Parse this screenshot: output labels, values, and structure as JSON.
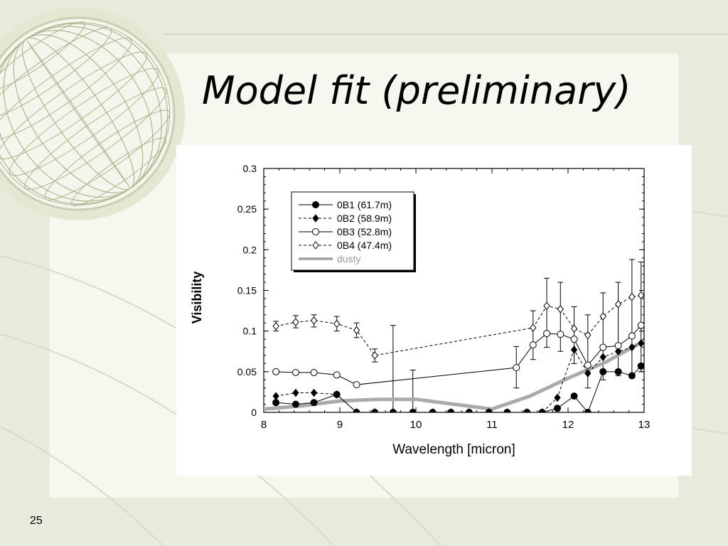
{
  "slide": {
    "title": "Model fit (preliminary)",
    "number": "25"
  },
  "chart_data": {
    "type": "line",
    "xlabel": "Wavelength [micron]",
    "ylabel": "Visibility",
    "xlim": [
      8,
      13
    ],
    "ylim": [
      0,
      0.3
    ],
    "xticks": [
      "8",
      "9",
      "10",
      "11",
      "12",
      "13"
    ],
    "yticks": [
      "0",
      "0.05",
      "0.1",
      "0.15",
      "0.2",
      "0.25",
      "0.3"
    ],
    "legend_position": "top-left",
    "series": [
      {
        "name": "0B1 (61.7m)",
        "style": "solid",
        "marker": "filled-circle",
        "color": "#000000",
        "x": [
          8.16,
          8.42,
          8.66,
          8.96,
          9.22,
          9.46,
          9.7,
          9.96,
          10.22,
          10.46,
          10.7,
          10.96,
          11.2,
          11.46,
          11.66,
          11.86,
          12.08,
          12.26,
          12.46,
          12.66,
          12.84,
          12.96
        ],
        "y": [
          0.012,
          0.01,
          0.012,
          0.022,
          0.0,
          0.0,
          0.0,
          0.0,
          0.0,
          0.0,
          0.0,
          0.0,
          0.0,
          0.0,
          0.0,
          0.005,
          0.02,
          0.0,
          0.05,
          0.05,
          0.045,
          0.057
        ]
      },
      {
        "name": "0B2 (58.9m)",
        "style": "dashed",
        "marker": "filled-diamond",
        "color": "#000000",
        "x": [
          8.16,
          8.42,
          8.66,
          8.96,
          9.22,
          9.46,
          9.7,
          9.96,
          10.22,
          10.46,
          10.7,
          10.96,
          11.2,
          11.46,
          11.66,
          11.86,
          12.08,
          12.26,
          12.46,
          12.66,
          12.84,
          12.96
        ],
        "y": [
          0.02,
          0.024,
          0.024,
          0.022,
          0.0,
          0.0,
          0.0,
          0.0,
          0.0,
          0.0,
          0.0,
          0.0,
          0.0,
          0.0,
          0.0,
          0.018,
          0.077,
          0.048,
          0.068,
          0.075,
          0.08,
          0.085
        ]
      },
      {
        "name": "0B3 (52.8m)",
        "style": "solid",
        "marker": "open-circle",
        "color": "#000000",
        "x": [
          8.16,
          8.42,
          8.66,
          8.96,
          9.22,
          11.32,
          11.54,
          11.72,
          11.9,
          12.08,
          12.26,
          12.46,
          12.66,
          12.84,
          12.96
        ],
        "y": [
          0.05,
          0.049,
          0.049,
          0.046,
          0.034,
          0.055,
          0.083,
          0.097,
          0.096,
          0.09,
          0.058,
          0.08,
          0.082,
          0.094,
          0.107
        ]
      },
      {
        "name": "0B4 (47.4m)",
        "style": "dashed",
        "marker": "open-diamond",
        "color": "#000000",
        "x": [
          8.16,
          8.42,
          8.66,
          8.96,
          9.22,
          9.46,
          11.54,
          11.72,
          11.9,
          12.08,
          12.26,
          12.46,
          12.66,
          12.84,
          12.96
        ],
        "y": [
          0.106,
          0.111,
          0.113,
          0.109,
          0.101,
          0.07,
          0.104,
          0.131,
          0.127,
          0.103,
          0.095,
          0.118,
          0.133,
          0.142,
          0.144
        ]
      },
      {
        "name": "dusty",
        "style": "thick",
        "marker": "none",
        "color": "#aaaaaa",
        "x": [
          8.0,
          8.5,
          9.0,
          9.5,
          10.0,
          10.5,
          11.0,
          11.5,
          12.0,
          12.5,
          13.0
        ],
        "y": [
          0.004,
          0.008,
          0.014,
          0.016,
          0.016,
          0.01,
          0.004,
          0.02,
          0.042,
          0.062,
          0.088
        ]
      }
    ],
    "error_bars": [
      {
        "x": 8.16,
        "lo": 0.1,
        "hi": 0.112
      },
      {
        "x": 8.42,
        "lo": 0.104,
        "hi": 0.119
      },
      {
        "x": 8.66,
        "lo": 0.105,
        "hi": 0.12
      },
      {
        "x": 8.96,
        "lo": 0.1,
        "hi": 0.118
      },
      {
        "x": 9.22,
        "lo": 0.092,
        "hi": 0.11
      },
      {
        "x": 9.46,
        "lo": 0.062,
        "hi": 0.078
      },
      {
        "x": 9.7,
        "lo": 0.0,
        "hi": 0.107
      },
      {
        "x": 9.96,
        "lo": 0.0,
        "hi": 0.052
      },
      {
        "x": 11.32,
        "lo": 0.03,
        "hi": 0.081
      },
      {
        "x": 11.54,
        "lo": 0.065,
        "hi": 0.125
      },
      {
        "x": 11.72,
        "lo": 0.08,
        "hi": 0.165
      },
      {
        "x": 11.9,
        "lo": 0.075,
        "hi": 0.16
      },
      {
        "x": 12.08,
        "lo": 0.06,
        "hi": 0.13
      },
      {
        "x": 12.26,
        "lo": 0.03,
        "hi": 0.12
      },
      {
        "x": 12.46,
        "lo": 0.04,
        "hi": 0.147
      },
      {
        "x": 12.66,
        "lo": 0.045,
        "hi": 0.16
      },
      {
        "x": 12.84,
        "lo": 0.045,
        "hi": 0.188
      },
      {
        "x": 12.96,
        "lo": 0.05,
        "hi": 0.185
      }
    ]
  }
}
